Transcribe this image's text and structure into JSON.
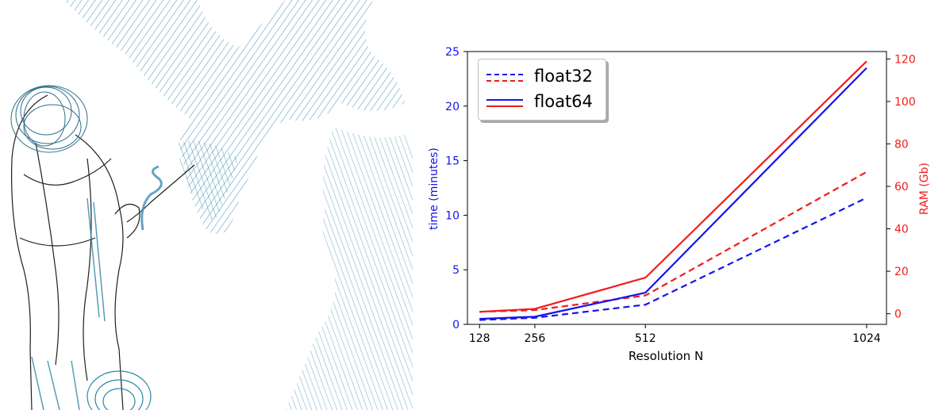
{
  "colors": {
    "float32_time": "#1414ee",
    "float32_ram": "#f01c1c",
    "float64_time": "#1414ee",
    "float64_ram": "#f01c1c",
    "illustration_teal": "#3a8fb0",
    "illustration_ink": "#1f1f1f"
  },
  "legend": {
    "entries": [
      {
        "label": "float32",
        "style": "dashed"
      },
      {
        "label": "float64",
        "style": "solid"
      }
    ],
    "placement": "upper-left"
  },
  "chart_data": {
    "type": "line",
    "xlabel": "Resolution N",
    "ylabel_left": "time (minutes)",
    "ylabel_right": "RAM (Gb)",
    "x": [
      128,
      256,
      512,
      1024
    ],
    "xticks": [
      "128",
      "256",
      "512",
      "1024"
    ],
    "ylim_left": [
      0,
      25
    ],
    "yticks_left": [
      "0",
      "5",
      "10",
      "15",
      "20",
      "25"
    ],
    "ylim_right": [
      -5.0,
      123.5
    ],
    "yticks_right": [
      "0",
      "20",
      "40",
      "60",
      "80",
      "100",
      "120"
    ],
    "grid": false,
    "series": [
      {
        "name": "float32",
        "axis": "left",
        "quantity": "time",
        "style": "dashed",
        "color": "#1414ee",
        "values": [
          0.4,
          0.6,
          1.8,
          11.6
        ]
      },
      {
        "name": "float32",
        "axis": "right",
        "quantity": "RAM",
        "style": "dashed",
        "color": "#f01c1c",
        "values": [
          0.9,
          1.7,
          8.6,
          66.8
        ]
      },
      {
        "name": "float64",
        "axis": "left",
        "quantity": "time",
        "style": "solid",
        "color": "#1414ee",
        "values": [
          0.5,
          0.7,
          2.9,
          23.5
        ]
      },
      {
        "name": "float64",
        "axis": "right",
        "quantity": "RAM",
        "style": "solid",
        "color": "#f01c1c",
        "values": [
          0.9,
          2.3,
          17.0,
          118.9
        ]
      }
    ]
  }
}
